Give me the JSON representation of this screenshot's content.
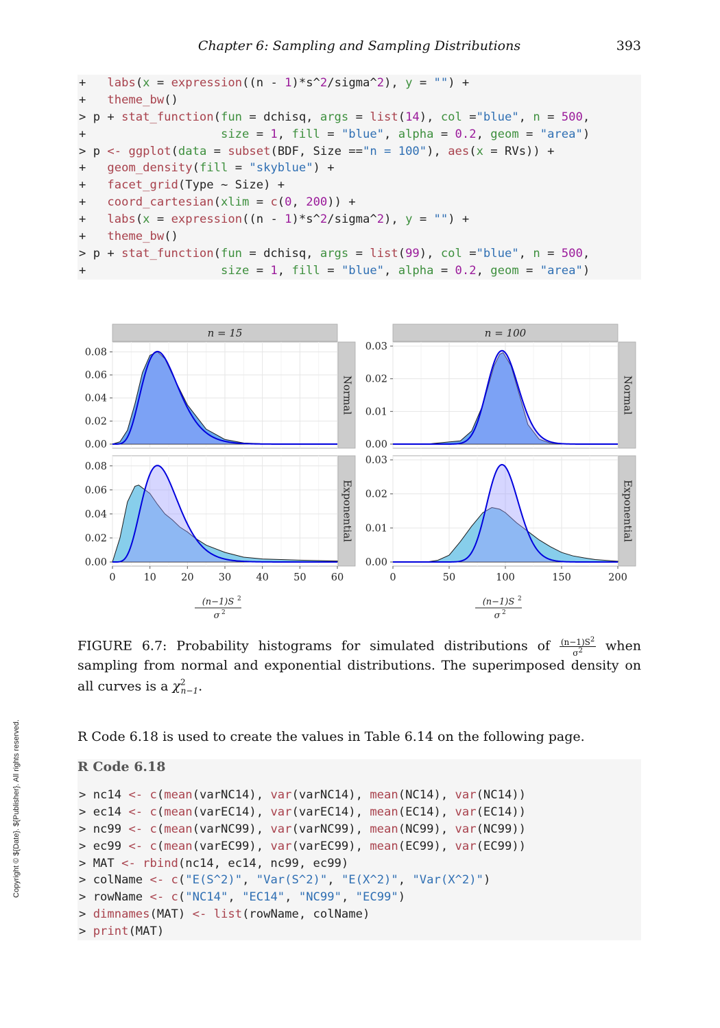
{
  "header": {
    "running_head": "Chapter  6:   Sampling and Sampling Distributions",
    "page_number": "393"
  },
  "code_block_1": [
    "+   labs(x = expression((n - 1)*s^2/sigma^2), y = \"\") +",
    "+   theme_bw()",
    "> p + stat_function(fun = dchisq, args = list(14), col =\"blue\", n = 500,",
    "+                   size = 1, fill = \"blue\", alpha = 0.2, geom = \"area\")",
    "> p <- ggplot(data = subset(BDF, Size ==\"n = 100\"), aes(x = RVs)) +",
    "+   geom_density(fill = \"skyblue\") +",
    "+   facet_grid(Type ~ Size) +",
    "+   coord_cartesian(xlim = c(0, 200)) +",
    "+   labs(x = expression((n - 1)*s^2/sigma^2), y = \"\") +",
    "+   theme_bw()",
    "> p + stat_function(fun = dchisq, args = list(99), col =\"blue\", n = 500,",
    "+                   size = 1, fill = \"blue\", alpha = 0.2, geom = \"area\")"
  ],
  "chart_data": [
    {
      "type": "area",
      "panel": "left",
      "strip_top": "n = 15",
      "facets": [
        "Normal",
        "Exponential"
      ],
      "xlabel_num": "(n−1)S",
      "xlabel_den": "σ",
      "xlim": [
        0,
        60
      ],
      "x_ticks": [
        0,
        10,
        20,
        30,
        40,
        50,
        60
      ],
      "ylim": [
        0,
        0.085
      ],
      "y_ticks": [
        0.0,
        0.02,
        0.04,
        0.06,
        0.08
      ],
      "y_tick_labels": [
        "0.00",
        "0.02",
        "0.04",
        "0.06",
        "0.08"
      ],
      "superimposed_chisq_df": 14,
      "series": [
        {
          "facet": "Normal",
          "kind": "empirical-density",
          "x": [
            0,
            2,
            4,
            6,
            8,
            10,
            12,
            14,
            16,
            18,
            20,
            25,
            30,
            35,
            40,
            50,
            60
          ],
          "y": [
            0.0,
            0.002,
            0.012,
            0.035,
            0.062,
            0.077,
            0.08,
            0.074,
            0.06,
            0.047,
            0.034,
            0.013,
            0.004,
            0.001,
            0.0003,
            0.0,
            0.0
          ]
        },
        {
          "facet": "Exponential",
          "kind": "empirical-density",
          "x": [
            0,
            2,
            4,
            6,
            7,
            10,
            12,
            14,
            16,
            18,
            20,
            22,
            25,
            30,
            35,
            40,
            50,
            60
          ],
          "y": [
            0.0,
            0.02,
            0.05,
            0.063,
            0.064,
            0.057,
            0.048,
            0.04,
            0.035,
            0.029,
            0.025,
            0.02,
            0.014,
            0.008,
            0.004,
            0.0025,
            0.0015,
            0.0008
          ]
        }
      ]
    },
    {
      "type": "area",
      "panel": "right",
      "strip_top": "n = 100",
      "facets": [
        "Normal",
        "Exponential"
      ],
      "xlabel_num": "(n−1)S",
      "xlabel_den": "σ",
      "xlim": [
        0,
        200
      ],
      "x_ticks": [
        0,
        50,
        100,
        150,
        200
      ],
      "ylim": [
        0,
        0.03
      ],
      "y_ticks": [
        0.0,
        0.01,
        0.02,
        0.03
      ],
      "y_tick_labels": [
        "0.00",
        "0.01",
        "0.02",
        "0.03"
      ],
      "superimposed_chisq_df": 99,
      "series": [
        {
          "facet": "Normal",
          "kind": "empirical-density",
          "x": [
            30,
            60,
            70,
            80,
            90,
            95,
            98,
            105,
            110,
            120,
            130,
            140,
            160,
            200
          ],
          "y": [
            0.0,
            0.001,
            0.004,
            0.012,
            0.024,
            0.0275,
            0.028,
            0.024,
            0.018,
            0.006,
            0.0015,
            0.0003,
            0.0,
            0.0
          ]
        },
        {
          "facet": "Exponential",
          "kind": "empirical-density",
          "x": [
            30,
            40,
            50,
            60,
            70,
            80,
            88,
            95,
            100,
            110,
            120,
            130,
            140,
            150,
            160,
            170,
            180,
            200
          ],
          "y": [
            0.0,
            0.0005,
            0.002,
            0.006,
            0.0105,
            0.0145,
            0.016,
            0.0155,
            0.0145,
            0.0115,
            0.009,
            0.0065,
            0.0045,
            0.0028,
            0.0018,
            0.0012,
            0.0007,
            0.0002
          ]
        }
      ]
    }
  ],
  "caption": {
    "prefix": "FIGURE 6.7: Probability histograms for simulated distributions of",
    "frac_num": "(n−1)S",
    "frac_den": "σ",
    "suffix": "when sampling from normal and exponential distributions.  The superimposed density on all curves is a",
    "chi": "χ",
    "chi_sub": "n−1",
    "chi_sup": "2",
    "end": "."
  },
  "body_text": "R Code 6.18 is used to create the values in Table 6.14 on the following page.",
  "code_title": "R Code 6.18",
  "code_block_2": [
    "> nc14 <- c(mean(varNC14), var(varNC14), mean(NC14), var(NC14))",
    "> ec14 <- c(mean(varEC14), var(varEC14), mean(EC14), var(EC14))",
    "> nc99 <- c(mean(varNC99), var(varNC99), mean(NC99), var(NC99))",
    "> ec99 <- c(mean(varEC99), var(varEC99), mean(EC99), var(EC99))",
    "> MAT <- rbind(nc14, ec14, nc99, ec99)",
    "> colName <- c(\"E(S^2)\", \"Var(S^2)\", \"E(X^2)\", \"Var(X^2)\")",
    "> rowName <- c(\"NC14\", \"EC14\", \"NC99\", \"EC99\")",
    "> dimnames(MAT) <- list(rowName, colName)",
    "> print(MAT)"
  ],
  "copyright": "Copyright © ${Date}. ${Publisher}. All rights reserved.",
  "colors": {
    "empirical_normal": "#6aa8ee",
    "empirical_exponential": "#87ceeb",
    "chisq_line": "#0000dd",
    "chisq_fill": "#9999ff",
    "strip": "#cccccc",
    "code_bg": "#f5f5f5"
  }
}
